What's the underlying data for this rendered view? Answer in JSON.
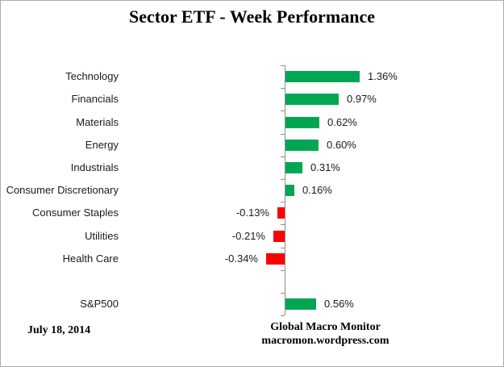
{
  "header": {
    "title": "Sector ETF - Week Performance"
  },
  "footer": {
    "date": "July 18, 2014",
    "source_line1": "Global Macro Monitor",
    "source_line2": "macromon.wordpress.com"
  },
  "colors": {
    "positive": "#00A651",
    "negative": "#FF0000",
    "axis": "#8e8e8e",
    "text": "#1a1a1a"
  },
  "chart_data": {
    "type": "bar",
    "orientation": "horizontal",
    "title": "Sector ETF - Week Performance",
    "categories": [
      "Technology",
      "Financials",
      "Materials",
      "Energy",
      "Industrials",
      "Consumer Discretionary",
      "Consumer Staples",
      "Utilities",
      "Health Care",
      "",
      "S&P500"
    ],
    "values": [
      1.36,
      0.97,
      0.62,
      0.6,
      0.31,
      0.16,
      -0.13,
      -0.21,
      -0.34,
      null,
      0.56
    ],
    "value_labels": [
      "1.36%",
      "0.97%",
      "0.62%",
      "0.60%",
      "0.31%",
      "0.16%",
      "-0.13%",
      "-0.21%",
      "-0.34%",
      "",
      "0.56%"
    ],
    "unit": "%",
    "positive_color": "#00A651",
    "negative_color": "#FF0000",
    "xlim_px_scale_note": "no value axis labels shown",
    "gridlines": false,
    "legend": false,
    "zero_axis": true
  }
}
